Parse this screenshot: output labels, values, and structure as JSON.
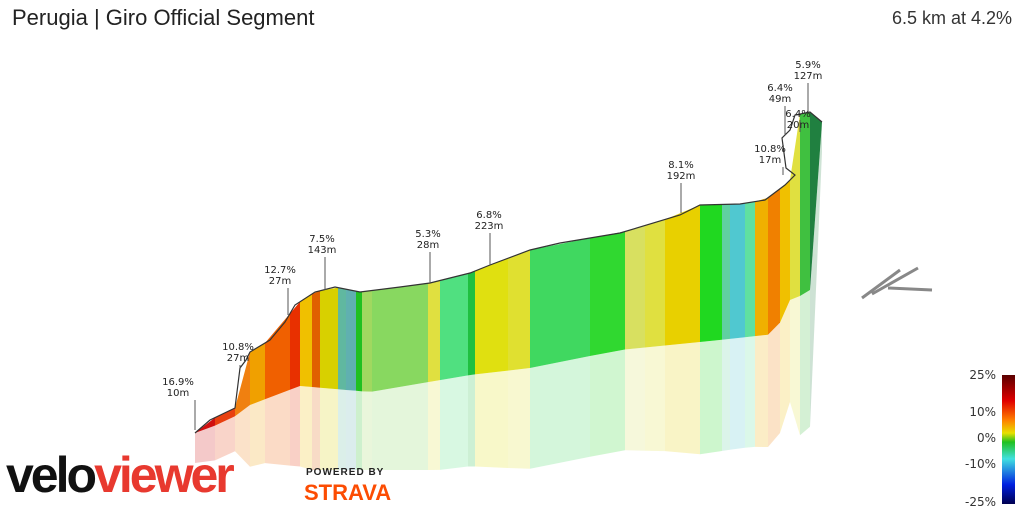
{
  "header": {
    "title": "Perugia | Giro Official Segment",
    "summary": "6.5 km at 4.2%"
  },
  "chart_data": {
    "type": "3d-elevation-profile",
    "annotations": [
      {
        "grade": "16.9%",
        "length": "10m"
      },
      {
        "grade": "10.8%",
        "length": "27m"
      },
      {
        "grade": "12.7%",
        "length": "27m"
      },
      {
        "grade": "7.5%",
        "length": "143m"
      },
      {
        "grade": "5.3%",
        "length": "28m"
      },
      {
        "grade": "6.8%",
        "length": "223m"
      },
      {
        "grade": "8.1%",
        "length": "192m"
      },
      {
        "grade": "10.8%",
        "length": "17m"
      },
      {
        "grade": "6.4%",
        "length": "20m"
      },
      {
        "grade": "6.4%",
        "length": "49m"
      },
      {
        "grade": "5.9%",
        "length": "127m"
      }
    ],
    "legend": {
      "ticks": [
        "25%",
        "10%",
        "0%",
        "-10%",
        "-25%"
      ],
      "colors": [
        "#5a0000",
        "#e00000",
        "#ff8000",
        "#e8e000",
        "#20c020",
        "#40e0e0",
        "#0020e0",
        "#000050"
      ]
    }
  },
  "branding": {
    "logo_part1": "velo",
    "logo_part2": "viewer",
    "powered_by": "POWERED BY",
    "strava": "STRAVA"
  }
}
